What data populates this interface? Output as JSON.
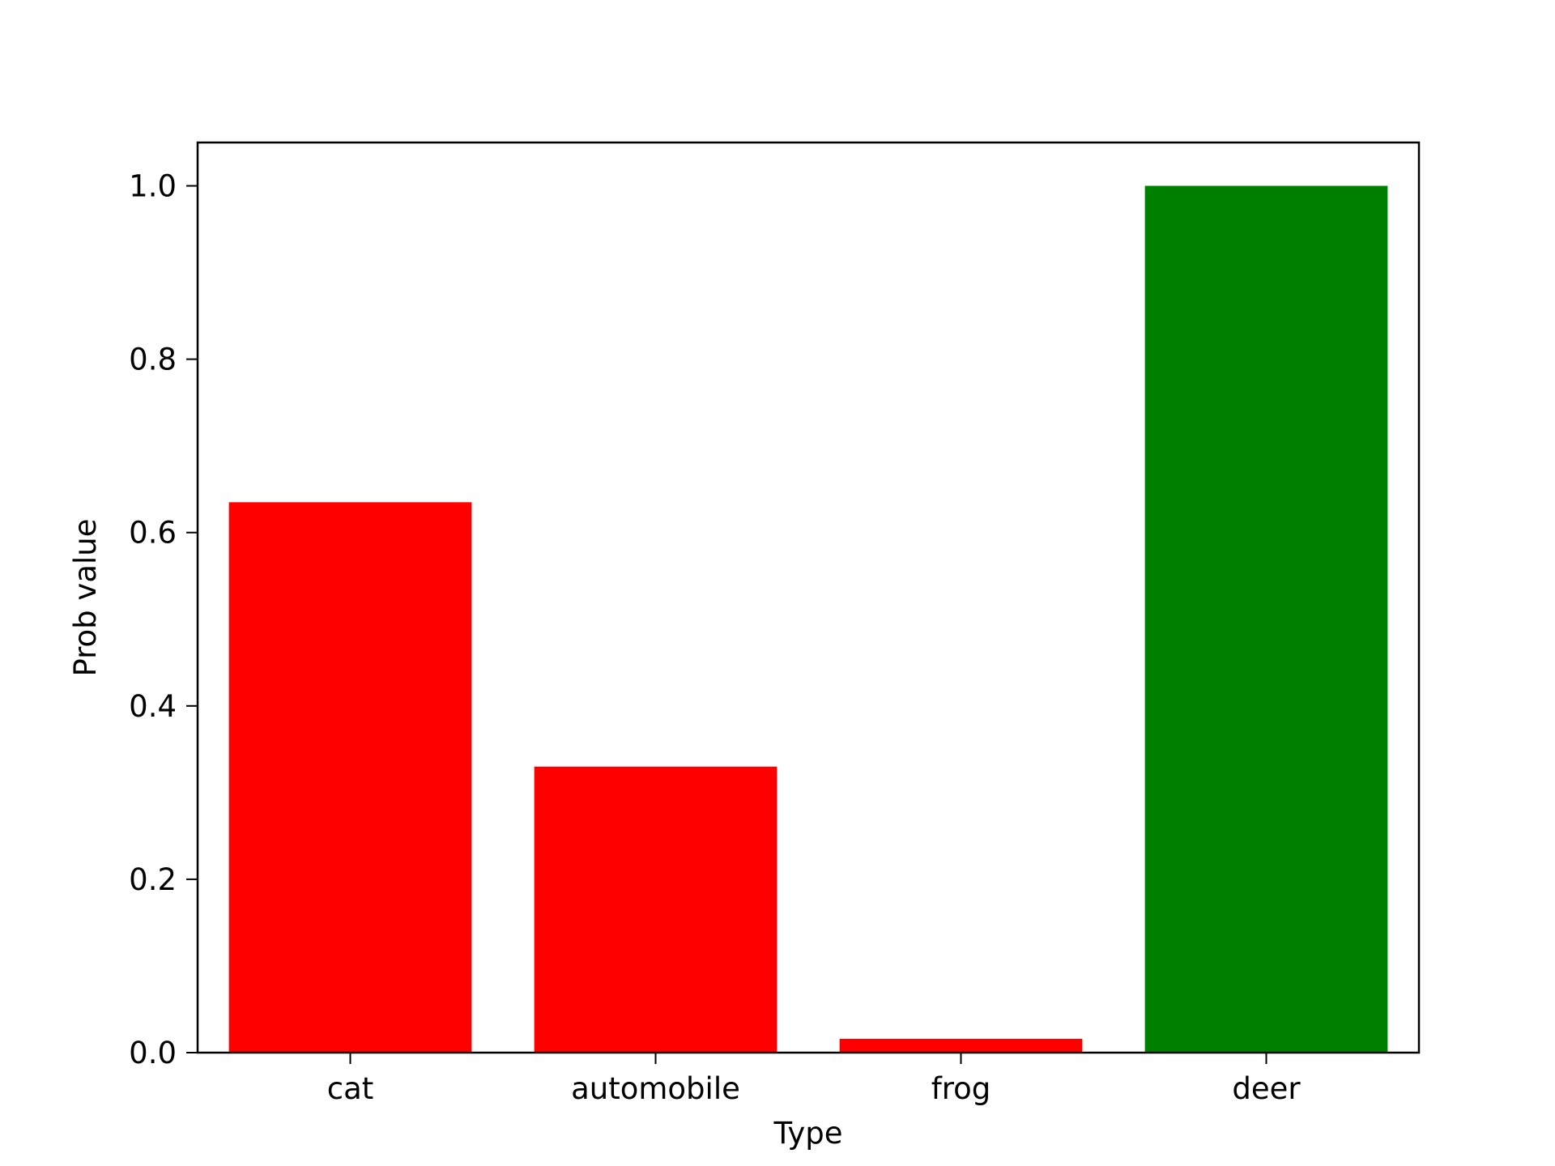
{
  "chart_data": {
    "type": "bar",
    "title": "",
    "xlabel": "Type",
    "ylabel": "Prob value",
    "categories": [
      "cat",
      "automobile",
      "frog",
      "deer"
    ],
    "values": [
      0.635,
      0.33,
      0.016,
      1.0
    ],
    "bar_colors": [
      "#ff0000",
      "#ff0000",
      "#ff0000",
      "#008000"
    ],
    "ylim": [
      0,
      1.05
    ],
    "yticks": [
      0.0,
      0.2,
      0.4,
      0.6,
      0.8,
      1.0
    ],
    "ytick_labels": [
      "0.0",
      "0.2",
      "0.4",
      "0.6",
      "0.8",
      "1.0"
    ],
    "grid": false,
    "legend": "none"
  }
}
